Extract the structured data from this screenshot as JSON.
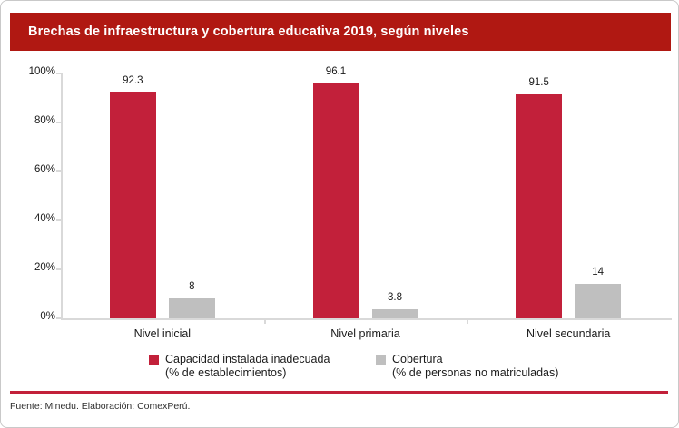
{
  "header": {
    "title": "Brechas de infraestructura y cobertura educativa 2019, según niveles",
    "background": "#b01812",
    "text_color": "#ffffff"
  },
  "chart_data": {
    "type": "bar",
    "title": "Brechas de infraestructura y cobertura educativa 2019, según niveles",
    "categories": [
      "Nivel inicial",
      "Nivel primaria",
      "Nivel secundaria"
    ],
    "series": [
      {
        "name": "Capacidad instalada inadecuada (% de establecimientos)",
        "color": "#c2203a",
        "values": [
          92.3,
          96.1,
          91.5
        ]
      },
      {
        "name": "Cobertura (% de personas no matriculadas)",
        "color": "#bfbfbf",
        "values": [
          8,
          3.8,
          14
        ]
      }
    ],
    "xlabel": "",
    "ylabel": "",
    "ylim": [
      0,
      100
    ],
    "y_ticks": [
      0,
      20,
      40,
      60,
      80,
      100
    ],
    "y_tick_suffix": "%",
    "grid": false,
    "bar_value_labels": true,
    "legend_position": "bottom"
  },
  "legend": {
    "items": [
      {
        "line1": "Capacidad instalada inadecuada",
        "line2": "(% de establecimientos)",
        "color": "#c2203a"
      },
      {
        "line1": "Cobertura",
        "line2": "(% de personas no matriculadas)",
        "color": "#bfbfbf"
      }
    ]
  },
  "footer": {
    "source": "Fuente: Minedu. Elaboración: ComexPerú."
  },
  "colors": {
    "bar_red": "#c2203a",
    "bar_gray": "#bfbfbf",
    "banner_red": "#b01812",
    "separator_red": "#c2203a",
    "axis_gray": "#d9d9d9"
  }
}
